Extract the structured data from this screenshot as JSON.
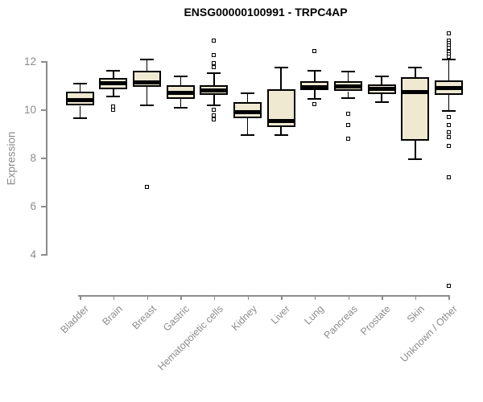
{
  "title": "ENSG00000100991 - TRPC4AP",
  "chart_data": {
    "type": "boxplot",
    "title": "ENSG00000100991 - TRPC4AP",
    "ylabel": "Expression",
    "xlabel": "",
    "y_ticks": [
      4,
      6,
      8,
      10,
      12
    ],
    "ylim": [
      2.2,
      13.4
    ],
    "grid": false,
    "legend": "none",
    "outlier_marker": "open-square",
    "categories": [
      "Bladder",
      "Brain",
      "Breast",
      "Gastric",
      "Hematopoietic cells",
      "Kidney",
      "Liver",
      "Lung",
      "Pancreas",
      "Prostate",
      "Skin",
      "Unknown / Other"
    ],
    "series": [
      {
        "name": "Bladder",
        "whisker_low": 9.65,
        "q1": 10.15,
        "median": 10.4,
        "q3": 10.72,
        "whisker_high": 11.07,
        "outliers": []
      },
      {
        "name": "Brain",
        "whisker_low": 10.55,
        "q1": 10.82,
        "median": 11.1,
        "q3": 11.3,
        "whisker_high": 11.6,
        "outliers": [
          10.12,
          10.0
        ]
      },
      {
        "name": "Breast",
        "whisker_low": 10.18,
        "q1": 10.92,
        "median": 11.12,
        "q3": 11.6,
        "whisker_high": 12.08,
        "outliers": [
          6.8
        ]
      },
      {
        "name": "Gastric",
        "whisker_low": 10.08,
        "q1": 10.42,
        "median": 10.7,
        "q3": 11.0,
        "whisker_high": 11.38,
        "outliers": []
      },
      {
        "name": "Hematopoietic cells",
        "whisker_low": 10.16,
        "q1": 10.6,
        "median": 10.8,
        "q3": 11.0,
        "whisker_high": 11.49,
        "outliers": [
          12.85,
          12.25,
          11.92,
          11.75,
          10.0,
          9.75,
          9.6
        ]
      },
      {
        "name": "Kidney",
        "whisker_low": 8.95,
        "q1": 9.62,
        "median": 9.9,
        "q3": 10.3,
        "whisker_high": 10.68,
        "outliers": []
      },
      {
        "name": "Liver",
        "whisker_low": 8.95,
        "q1": 9.28,
        "median": 9.52,
        "q3": 10.85,
        "whisker_high": 11.75,
        "outliers": []
      },
      {
        "name": "Lung",
        "whisker_low": 10.45,
        "q1": 10.8,
        "median": 10.92,
        "q3": 11.18,
        "whisker_high": 11.6,
        "outliers": [
          12.42,
          10.22
        ]
      },
      {
        "name": "Pancreas",
        "whisker_low": 10.48,
        "q1": 10.75,
        "median": 10.95,
        "q3": 11.17,
        "whisker_high": 11.58,
        "outliers": [
          9.82,
          9.35,
          8.78
        ]
      },
      {
        "name": "Prostate",
        "whisker_low": 10.3,
        "q1": 10.64,
        "median": 10.85,
        "q3": 11.03,
        "whisker_high": 11.37,
        "outliers": []
      },
      {
        "name": "Skin",
        "whisker_low": 7.93,
        "q1": 8.7,
        "median": 10.72,
        "q3": 11.34,
        "whisker_high": 11.72,
        "outliers": []
      },
      {
        "name": "Unknown / Other",
        "whisker_low": 9.92,
        "q1": 10.6,
        "median": 10.88,
        "q3": 11.2,
        "whisker_high": 12.06,
        "outliers": [
          13.15,
          12.85,
          12.75,
          12.65,
          12.55,
          12.4,
          12.3,
          12.2,
          9.7,
          9.35,
          9.05,
          8.85,
          8.5,
          7.2,
          2.7
        ]
      }
    ],
    "colors": {
      "box_fill": "#f0e9d2",
      "box_border": "#000000",
      "median": "#000000",
      "axis": "#8c8c8c",
      "tick_label": "#8c8c8c",
      "title": "#000000",
      "background": "#ffffff"
    }
  }
}
